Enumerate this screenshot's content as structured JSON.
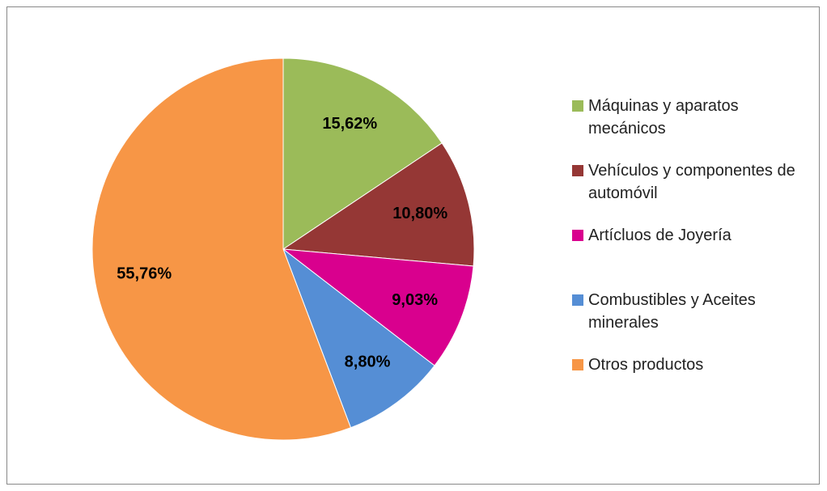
{
  "chart_data": {
    "type": "pie",
    "categories": [
      "Máquinas y aparatos mecánicos",
      "Vehículos y componentes de automóvil",
      "Artícluos de Joyería",
      "Combustibles y Aceites minerales",
      "Otros productos"
    ],
    "values": [
      15.62,
      10.8,
      9.03,
      8.8,
      55.76
    ],
    "value_labels": [
      "15,62%",
      "10,80%",
      "9,03%",
      "8,80%",
      "55,76%"
    ],
    "colors": [
      "#9bbb59",
      "#953735",
      "#d9008e",
      "#558ed5",
      "#f79646"
    ],
    "legend": "right"
  }
}
